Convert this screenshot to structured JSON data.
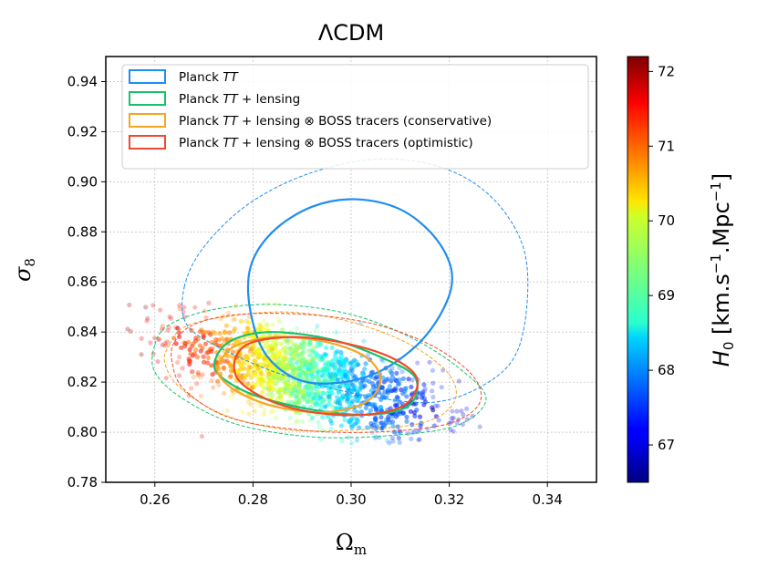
{
  "chart_data": {
    "type": "scatter",
    "title": "ΛCDM",
    "xlabel": "Ωm",
    "ylabel": "σ8",
    "xlim": [
      0.25,
      0.35
    ],
    "ylim": [
      0.78,
      0.95
    ],
    "xticks": [
      "0.26",
      "0.28",
      "0.30",
      "0.32",
      "0.34"
    ],
    "yticks": [
      "0.78",
      "0.80",
      "0.82",
      "0.84",
      "0.86",
      "0.88",
      "0.90",
      "0.92",
      "0.94"
    ],
    "grid": true,
    "legend_position": "top-left",
    "legend": [
      {
        "label_plain": "Planck TT",
        "color": "#1f8ef1",
        "parts": [
          {
            "t": "Planck "
          },
          {
            "t": "TT",
            "italic": true
          }
        ]
      },
      {
        "label_plain": "Planck TT + lensing",
        "color": "#17c26b",
        "parts": [
          {
            "t": "Planck "
          },
          {
            "t": "TT",
            "italic": true
          },
          {
            "t": " + lensing"
          }
        ]
      },
      {
        "label_plain": "Planck TT + lensing ⊗ BOSS tracers (conservative)",
        "color": "#f5a623",
        "parts": [
          {
            "t": "Planck "
          },
          {
            "t": "TT",
            "italic": true
          },
          {
            "t": " + lensing ⊗ BOSS tracers (conservative)"
          }
        ]
      },
      {
        "label_plain": "Planck TT + lensing ⊗ BOSS tracers (optimistic)",
        "color": "#f04a2c",
        "parts": [
          {
            "t": "Planck "
          },
          {
            "t": "TT",
            "italic": true
          },
          {
            "t": " + lensing ⊗ BOSS tracers (optimistic)"
          }
        ]
      }
    ],
    "contours": [
      {
        "series": "Planck TT",
        "level": "68%",
        "style": "solid",
        "color": "#1f8ef1",
        "points": [
          [
            0.2795,
            0.866
          ],
          [
            0.284,
            0.88
          ],
          [
            0.292,
            0.89
          ],
          [
            0.301,
            0.893
          ],
          [
            0.31,
            0.889
          ],
          [
            0.317,
            0.878
          ],
          [
            0.3205,
            0.864
          ],
          [
            0.319,
            0.85
          ],
          [
            0.313,
            0.834
          ],
          [
            0.303,
            0.822
          ],
          [
            0.291,
            0.82
          ],
          [
            0.283,
            0.83
          ],
          [
            0.2795,
            0.848
          ]
        ]
      },
      {
        "series": "Planck TT",
        "level": "95%",
        "style": "dashed",
        "color": "#1f8ef1",
        "points": [
          [
            0.266,
            0.858
          ],
          [
            0.27,
            0.874
          ],
          [
            0.279,
            0.891
          ],
          [
            0.291,
            0.903
          ],
          [
            0.305,
            0.909
          ],
          [
            0.318,
            0.906
          ],
          [
            0.328,
            0.895
          ],
          [
            0.3345,
            0.877
          ],
          [
            0.336,
            0.857
          ],
          [
            0.334,
            0.833
          ],
          [
            0.328,
            0.82
          ],
          [
            0.317,
            0.812
          ],
          [
            0.302,
            0.815
          ],
          [
            0.286,
            0.823
          ],
          [
            0.274,
            0.833
          ],
          [
            0.2665,
            0.843
          ]
        ]
      },
      {
        "series": "Planck TT + lensing",
        "level": "68%",
        "style": "solid",
        "color": "#17c26b",
        "points": [
          [
            0.2725,
            0.83
          ],
          [
            0.276,
            0.837
          ],
          [
            0.284,
            0.84
          ],
          [
            0.296,
            0.837
          ],
          [
            0.306,
            0.83
          ],
          [
            0.313,
            0.822
          ],
          [
            0.312,
            0.811
          ],
          [
            0.304,
            0.807
          ],
          [
            0.292,
            0.809
          ],
          [
            0.28,
            0.815
          ],
          [
            0.273,
            0.823
          ]
        ]
      },
      {
        "series": "Planck TT + lensing",
        "level": "95%",
        "style": "dashed",
        "color": "#17c26b",
        "points": [
          [
            0.26,
            0.835
          ],
          [
            0.263,
            0.843
          ],
          [
            0.272,
            0.849
          ],
          [
            0.285,
            0.851
          ],
          [
            0.3,
            0.847
          ],
          [
            0.313,
            0.837
          ],
          [
            0.323,
            0.824
          ],
          [
            0.3275,
            0.813
          ],
          [
            0.322,
            0.803
          ],
          [
            0.31,
            0.799
          ],
          [
            0.293,
            0.798
          ],
          [
            0.277,
            0.803
          ],
          [
            0.266,
            0.813
          ],
          [
            0.26,
            0.824
          ]
        ]
      },
      {
        "series": "Planck TT + lensing ⊗ BOSS tracers (conservative)",
        "level": "68%",
        "style": "solid",
        "color": "#f5a623",
        "points": [
          [
            0.2735,
            0.829
          ],
          [
            0.277,
            0.835
          ],
          [
            0.285,
            0.838
          ],
          [
            0.295,
            0.836
          ],
          [
            0.303,
            0.83
          ],
          [
            0.306,
            0.821
          ],
          [
            0.303,
            0.812
          ],
          [
            0.295,
            0.808
          ],
          [
            0.285,
            0.81
          ],
          [
            0.277,
            0.816
          ],
          [
            0.273,
            0.823
          ]
        ]
      },
      {
        "series": "Planck TT + lensing ⊗ BOSS tracers (conservative)",
        "level": "95%",
        "style": "dashed",
        "color": "#f5a623",
        "points": [
          [
            0.263,
            0.835
          ],
          [
            0.266,
            0.842
          ],
          [
            0.274,
            0.846
          ],
          [
            0.287,
            0.848
          ],
          [
            0.3,
            0.844
          ],
          [
            0.312,
            0.835
          ],
          [
            0.32,
            0.823
          ],
          [
            0.321,
            0.812
          ],
          [
            0.315,
            0.804
          ],
          [
            0.302,
            0.801
          ],
          [
            0.287,
            0.801
          ],
          [
            0.274,
            0.807
          ],
          [
            0.265,
            0.818
          ],
          [
            0.262,
            0.828
          ]
        ]
      },
      {
        "series": "Planck TT + lensing ⊗ BOSS tracers (optimistic)",
        "level": "68%",
        "style": "solid",
        "color": "#f04a2c",
        "points": [
          [
            0.2765,
            0.83
          ],
          [
            0.28,
            0.836
          ],
          [
            0.289,
            0.838
          ],
          [
            0.3,
            0.835
          ],
          [
            0.309,
            0.829
          ],
          [
            0.3135,
            0.821
          ],
          [
            0.311,
            0.811
          ],
          [
            0.303,
            0.807
          ],
          [
            0.292,
            0.808
          ],
          [
            0.283,
            0.813
          ],
          [
            0.277,
            0.821
          ]
        ]
      },
      {
        "series": "Planck TT + lensing ⊗ BOSS tracers (optimistic)",
        "level": "95%",
        "style": "dashed",
        "color": "#f04a2c",
        "points": [
          [
            0.264,
            0.836
          ],
          [
            0.268,
            0.843
          ],
          [
            0.277,
            0.847
          ],
          [
            0.291,
            0.847
          ],
          [
            0.305,
            0.843
          ],
          [
            0.317,
            0.834
          ],
          [
            0.325,
            0.822
          ],
          [
            0.326,
            0.811
          ],
          [
            0.319,
            0.803
          ],
          [
            0.304,
            0.8
          ],
          [
            0.289,
            0.801
          ],
          [
            0.275,
            0.806
          ],
          [
            0.266,
            0.817
          ],
          [
            0.2635,
            0.828
          ]
        ]
      }
    ],
    "samples": {
      "description_color_variable": "H0",
      "omega_m_range": [
        0.255,
        0.325
      ],
      "sigma8_range": [
        0.795,
        0.848
      ],
      "trend": "H0 decreases with Omega_m: ~72 at 0.255, ~70 at 0.283, ~68 at 0.303, ~67 at 0.322"
    },
    "colorbar": {
      "label": "H0 [km.s−1.Mpc−1]",
      "min": 66.5,
      "max": 72.2,
      "ticks": [
        "67",
        "68",
        "69",
        "70",
        "71",
        "72"
      ],
      "colormap": "jet"
    }
  }
}
